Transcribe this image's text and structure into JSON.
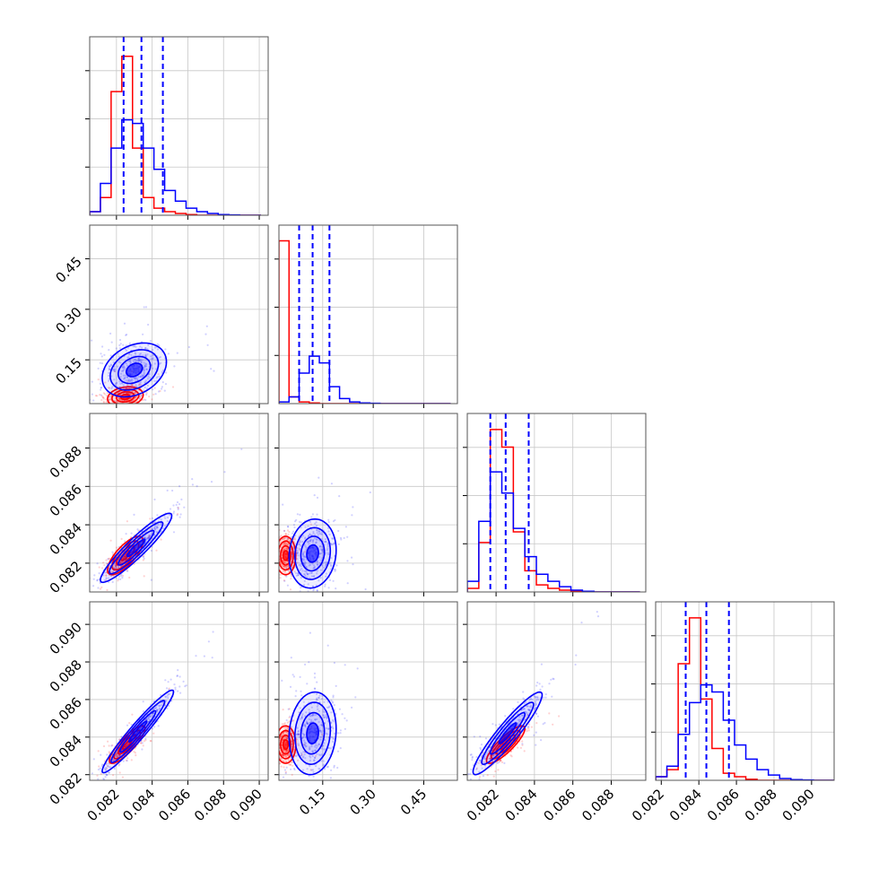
{
  "chart_data": {
    "type": "corner",
    "grid": true,
    "colors": {
      "series_a": "#ff0000",
      "series_b": "#0000ff"
    },
    "variables": [
      {
        "range": [
          0.0805,
          0.0905
        ],
        "ticks": [
          "0.082",
          "0.084",
          "0.086",
          "0.088",
          "0.090"
        ],
        "tick_values": [
          0.082,
          0.084,
          0.086,
          0.088,
          0.09
        ]
      },
      {
        "range": [
          0.02,
          0.55
        ],
        "ticks": [
          "0.15",
          "0.30",
          "0.45"
        ],
        "tick_values": [
          0.15,
          0.3,
          0.45
        ]
      },
      {
        "range": [
          0.0805,
          0.0898
        ],
        "ticks": [
          "0.082",
          "0.084",
          "0.086",
          "0.088"
        ],
        "tick_values": [
          0.082,
          0.084,
          0.086,
          0.088
        ]
      },
      {
        "range": [
          0.0817,
          0.0912
        ],
        "ticks": [
          "0.082",
          "0.084",
          "0.086",
          "0.088",
          "0.090"
        ],
        "tick_values": [
          0.082,
          0.084,
          0.086,
          0.088,
          0.09
        ]
      }
    ],
    "diagonal": [
      {
        "ymax": 48,
        "bins": [
          0.0805,
          0.0811,
          0.0817,
          0.0823,
          0.0829,
          0.0835,
          0.0841,
          0.0847,
          0.0853,
          0.0859,
          0.0865,
          0.0871,
          0.0877,
          0.0883,
          0.0889,
          0.0895,
          0.0901
        ],
        "series_a": [
          1,
          5,
          35,
          45,
          19,
          5,
          2,
          1,
          0.5,
          0.2,
          0,
          0,
          0,
          0,
          0,
          0
        ],
        "series_b": [
          1,
          9,
          19,
          27,
          26,
          19,
          13,
          7,
          4,
          2,
          1,
          0.5,
          0.2,
          0.1,
          0,
          0
        ],
        "quantiles_b": [
          0.0824,
          0.0834,
          0.0846
        ]
      },
      {
        "ymax": 50,
        "bins": [
          0.02,
          0.05,
          0.08,
          0.11,
          0.14,
          0.17,
          0.2,
          0.23,
          0.26,
          0.29,
          0.32,
          0.35,
          0.38,
          0.41,
          0.44,
          0.47,
          0.5,
          0.53
        ],
        "series_a": [
          48,
          2,
          0.5,
          0.2,
          0,
          0,
          0,
          0,
          0,
          0,
          0,
          0,
          0,
          0,
          0,
          0,
          0
        ],
        "series_b": [
          0.5,
          2,
          9,
          14,
          12,
          5,
          1.5,
          0.5,
          0.2,
          0.1,
          0,
          0,
          0,
          0,
          0,
          0,
          0
        ],
        "quantiles_b": [
          0.08,
          0.12,
          0.17
        ]
      },
      {
        "ymax": 48,
        "bins": [
          0.0805,
          0.0811,
          0.0817,
          0.0823,
          0.0829,
          0.0835,
          0.0841,
          0.0847,
          0.0853,
          0.0859,
          0.0865,
          0.0871,
          0.0877,
          0.0883,
          0.0889,
          0.0895
        ],
        "series_a": [
          1,
          14,
          46,
          41,
          17,
          6,
          2,
          1,
          0.5,
          0.2,
          0,
          0,
          0,
          0,
          0
        ],
        "series_b": [
          3,
          20,
          34,
          28,
          18,
          10,
          5,
          3,
          1.5,
          0.5,
          0.2,
          0,
          0,
          0,
          0
        ],
        "quantiles_b": [
          0.0817,
          0.0825,
          0.0837
        ]
      },
      {
        "ymax": 48,
        "bins": [
          0.0817,
          0.0823,
          0.0829,
          0.0835,
          0.0841,
          0.0847,
          0.0853,
          0.0859,
          0.0865,
          0.0871,
          0.0877,
          0.0883,
          0.0889,
          0.0895,
          0.0901,
          0.0907,
          0.0913
        ],
        "series_a": [
          1,
          3,
          33,
          46,
          23,
          9,
          2,
          1,
          0.3,
          0,
          0,
          0,
          0,
          0,
          0,
          0
        ],
        "series_b": [
          1,
          4,
          13,
          22,
          27,
          25,
          17,
          10,
          6,
          3,
          1.5,
          0.5,
          0.2,
          0.1,
          0,
          0
        ],
        "quantiles_b": [
          0.0833,
          0.0844,
          0.0856
        ]
      }
    ],
    "pairs": [
      {
        "col": 0,
        "row": 1,
        "series_a": {
          "center": [
            0.0825,
            0.04
          ],
          "sd": [
            0.0005,
            0.015
          ],
          "corr": 0.2
        },
        "series_b": {
          "center": [
            0.083,
            0.12
          ],
          "sd": [
            0.0009,
            0.04
          ],
          "corr": 0.3
        }
      },
      {
        "col": 0,
        "row": 2,
        "series_a": {
          "center": [
            0.0825,
            0.0824
          ],
          "sd": [
            0.0005,
            0.0005
          ],
          "corr": 0.75
        },
        "series_b": {
          "center": [
            0.0831,
            0.0828
          ],
          "sd": [
            0.001,
            0.0009
          ],
          "corr": 0.93
        }
      },
      {
        "col": 1,
        "row": 2,
        "series_a": {
          "center": [
            0.04,
            0.0824
          ],
          "sd": [
            0.015,
            0.0005
          ],
          "corr": 0.0
        },
        "series_b": {
          "center": [
            0.12,
            0.0825
          ],
          "sd": [
            0.035,
            0.0009
          ],
          "corr": 0.1
        }
      },
      {
        "col": 0,
        "row": 3,
        "series_a": {
          "center": [
            0.0826,
            0.0836
          ],
          "sd": [
            0.0005,
            0.0005
          ],
          "corr": 0.85
        },
        "series_b": {
          "center": [
            0.0832,
            0.0843
          ],
          "sd": [
            0.001,
            0.0011
          ],
          "corr": 0.96
        }
      },
      {
        "col": 1,
        "row": 3,
        "series_a": {
          "center": [
            0.04,
            0.0836
          ],
          "sd": [
            0.015,
            0.0005
          ],
          "corr": 0.0
        },
        "series_b": {
          "center": [
            0.12,
            0.0842
          ],
          "sd": [
            0.035,
            0.0011
          ],
          "corr": 0.1
        }
      },
      {
        "col": 2,
        "row": 3,
        "series_a": {
          "center": [
            0.0825,
            0.0836
          ],
          "sd": [
            0.0005,
            0.0005
          ],
          "corr": 0.85
        },
        "series_b": {
          "center": [
            0.0826,
            0.0842
          ],
          "sd": [
            0.0009,
            0.0011
          ],
          "corr": 0.93
        }
      }
    ]
  }
}
